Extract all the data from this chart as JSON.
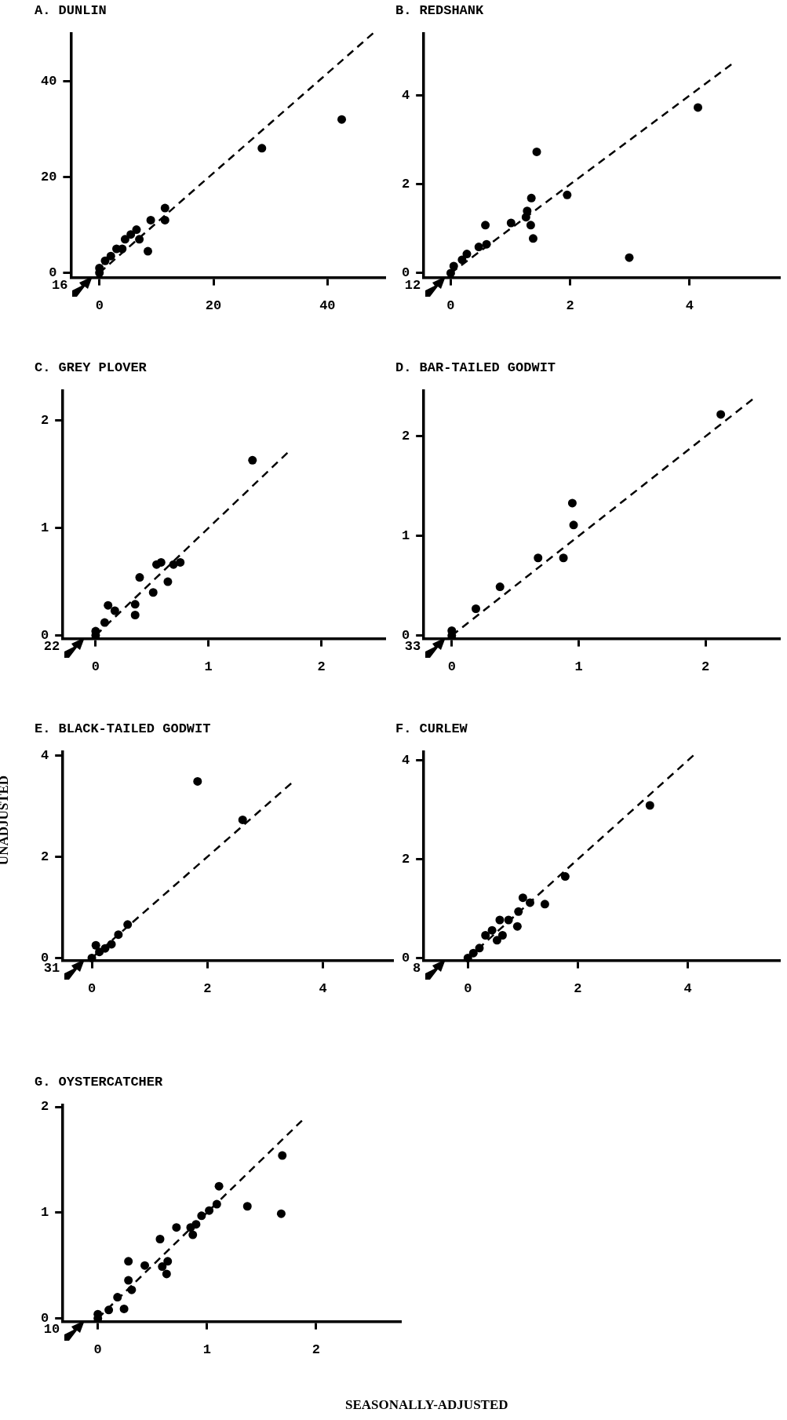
{
  "chart_data": [
    {
      "type": "scatter",
      "title": "A. DUNLIN",
      "xlim": [
        -5,
        50
      ],
      "ylim": [
        -1,
        50
      ],
      "xticks": [
        0,
        20,
        40
      ],
      "yticks": [
        0,
        20,
        40
      ],
      "grid": false,
      "legend": false,
      "series": [
        {
          "marker": "circle",
          "color": "#000000",
          "x": [
            0,
            0,
            1,
            2,
            3,
            4,
            4.5,
            5.5,
            6.5,
            7,
            8.5,
            9,
            11.5,
            11.5,
            28.5,
            42.5
          ],
          "values": [
            0,
            1,
            2.5,
            3.5,
            5,
            5,
            7,
            8,
            9,
            7,
            4.5,
            11,
            11,
            13.5,
            26,
            32
          ]
        },
        {
          "type": "line",
          "color": "#000000",
          "line_style": "dashed",
          "x": [
            0,
            48
          ],
          "values": [
            0,
            50
          ]
        }
      ],
      "annotations": [
        "16"
      ]
    },
    {
      "type": "scatter",
      "title": "B. REDSHANK",
      "xlim": [
        -0.45,
        5.5
      ],
      "ylim": [
        -0.1,
        5.4
      ],
      "xticks": [
        0,
        2,
        4
      ],
      "yticks": [
        0,
        2,
        4
      ],
      "grid": false,
      "legend": false,
      "series": [
        {
          "marker": "circle",
          "color": "#000000",
          "x": [
            0,
            0.05,
            0.19,
            0.27,
            0.47,
            0.6,
            0.58,
            1.01,
            1.26,
            1.28,
            1.34,
            1.38,
            1.35,
            1.44,
            1.95,
            2.99,
            4.14
          ],
          "values": [
            0,
            0.16,
            0.3,
            0.43,
            0.59,
            0.65,
            1.08,
            1.13,
            1.26,
            1.4,
            1.08,
            0.78,
            1.69,
            2.73,
            1.76,
            0.35,
            3.73
          ]
        },
        {
          "type": "line",
          "color": "#000000",
          "line_style": "dashed",
          "x": [
            0,
            4.7
          ],
          "values": [
            0,
            4.7
          ]
        }
      ],
      "annotations": [
        "12"
      ]
    },
    {
      "type": "scatter",
      "title": "C. GREY PLOVER",
      "xlim": [
        -0.29,
        2.56
      ],
      "ylim": [
        -0.03,
        2.28
      ],
      "xticks": [
        0,
        1,
        2
      ],
      "yticks": [
        0,
        1,
        2
      ],
      "grid": false,
      "legend": false,
      "series": [
        {
          "marker": "circle",
          "color": "#000000",
          "x": [
            0,
            0,
            0.08,
            0.11,
            0.17,
            0.35,
            0.35,
            0.39,
            0.51,
            0.54,
            0.58,
            0.64,
            0.69,
            0.75,
            1.39
          ],
          "values": [
            0,
            0.04,
            0.12,
            0.28,
            0.23,
            0.19,
            0.29,
            0.54,
            0.4,
            0.66,
            0.68,
            0.5,
            0.66,
            0.68,
            1.63
          ]
        },
        {
          "type": "line",
          "color": "#000000",
          "line_style": "dashed",
          "x": [
            0,
            1.7
          ],
          "values": [
            0,
            1.7
          ]
        }
      ],
      "annotations": [
        "22"
      ]
    },
    {
      "type": "scatter",
      "title": "D. BAR-TAILED GODWIT",
      "xlim": [
        -0.22,
        2.58
      ],
      "ylim": [
        -0.03,
        2.46
      ],
      "xticks": [
        0,
        1,
        2
      ],
      "yticks": [
        0,
        1,
        2
      ],
      "grid": false,
      "legend": false,
      "series": [
        {
          "marker": "circle",
          "color": "#000000",
          "x": [
            0,
            0,
            0.19,
            0.38,
            0.68,
            0.88,
            0.96,
            0.95,
            2.12
          ],
          "values": [
            0,
            0.05,
            0.27,
            0.49,
            0.78,
            0.78,
            1.11,
            1.33,
            2.22
          ]
        },
        {
          "type": "line",
          "color": "#000000",
          "line_style": "dashed",
          "x": [
            0,
            2.37
          ],
          "values": [
            0,
            2.37
          ]
        }
      ],
      "annotations": [
        "33"
      ]
    },
    {
      "type": "scatter",
      "title": "E. BLACK-TAILED GODWIT",
      "ylabel": "UNADJUSTED",
      "xlim": [
        -0.5,
        5.2
      ],
      "ylim": [
        -0.05,
        4.08
      ],
      "xticks": [
        0,
        2,
        4
      ],
      "yticks": [
        0,
        2,
        4
      ],
      "grid": false,
      "legend": false,
      "series": [
        {
          "marker": "circle",
          "color": "#000000",
          "x": [
            0,
            0.07,
            0.13,
            0.23,
            0.34,
            0.46,
            0.62,
            1.83,
            2.61
          ],
          "values": [
            0,
            0.25,
            0.12,
            0.19,
            0.27,
            0.46,
            0.66,
            3.49,
            2.73
          ]
        },
        {
          "type": "line",
          "color": "#000000",
          "line_style": "dashed",
          "x": [
            0,
            3.45
          ],
          "values": [
            0,
            3.45
          ]
        }
      ],
      "annotations": [
        "31"
      ]
    },
    {
      "type": "scatter",
      "title": "F. CURLEW",
      "xlim": [
        -0.8,
        5.66
      ],
      "ylim": [
        -0.05,
        4.18
      ],
      "xticks": [
        0,
        2,
        4
      ],
      "yticks": [
        0,
        2,
        4
      ],
      "grid": false,
      "legend": false,
      "series": [
        {
          "marker": "circle",
          "color": "#000000",
          "x": [
            0,
            0.1,
            0.21,
            0.32,
            0.44,
            0.53,
            0.63,
            0.58,
            0.74,
            0.9,
            0.92,
            1.0,
            1.13,
            1.4,
            1.77,
            3.31
          ],
          "values": [
            0,
            0.1,
            0.2,
            0.46,
            0.56,
            0.36,
            0.46,
            0.77,
            0.77,
            0.64,
            0.94,
            1.22,
            1.12,
            1.09,
            1.65,
            3.09
          ]
        },
        {
          "type": "line",
          "color": "#000000",
          "line_style": "dashed",
          "x": [
            0,
            4.1
          ],
          "values": [
            0,
            4.1
          ]
        }
      ],
      "annotations": [
        "8"
      ]
    },
    {
      "type": "scatter",
      "title": "G. OYSTERCATCHER",
      "xlabel": "SEASONALLY-ADJUSTED",
      "xlim": [
        -0.32,
        2.77
      ],
      "ylim": [
        -0.03,
        2.02
      ],
      "xticks": [
        0,
        1,
        2
      ],
      "yticks": [
        0,
        1,
        2
      ],
      "grid": false,
      "legend": false,
      "series": [
        {
          "marker": "circle",
          "color": "#000000",
          "x": [
            0,
            0,
            0.1,
            0.24,
            0.18,
            0.31,
            0.28,
            0.28,
            0.43,
            0.59,
            0.63,
            0.64,
            0.57,
            0.72,
            0.87,
            0.85,
            0.9,
            0.95,
            1.02,
            1.09,
            1.11,
            1.37,
            1.68,
            1.69
          ],
          "values": [
            0,
            0.04,
            0.08,
            0.09,
            0.2,
            0.27,
            0.36,
            0.54,
            0.5,
            0.49,
            0.42,
            0.54,
            0.75,
            0.86,
            0.79,
            0.86,
            0.89,
            0.97,
            1.02,
            1.08,
            1.25,
            1.06,
            0.99,
            1.54
          ]
        },
        {
          "type": "line",
          "color": "#000000",
          "line_style": "dashed",
          "x": [
            0,
            1.87
          ],
          "values": [
            0,
            1.87
          ]
        }
      ],
      "annotations": [
        "10"
      ]
    }
  ]
}
